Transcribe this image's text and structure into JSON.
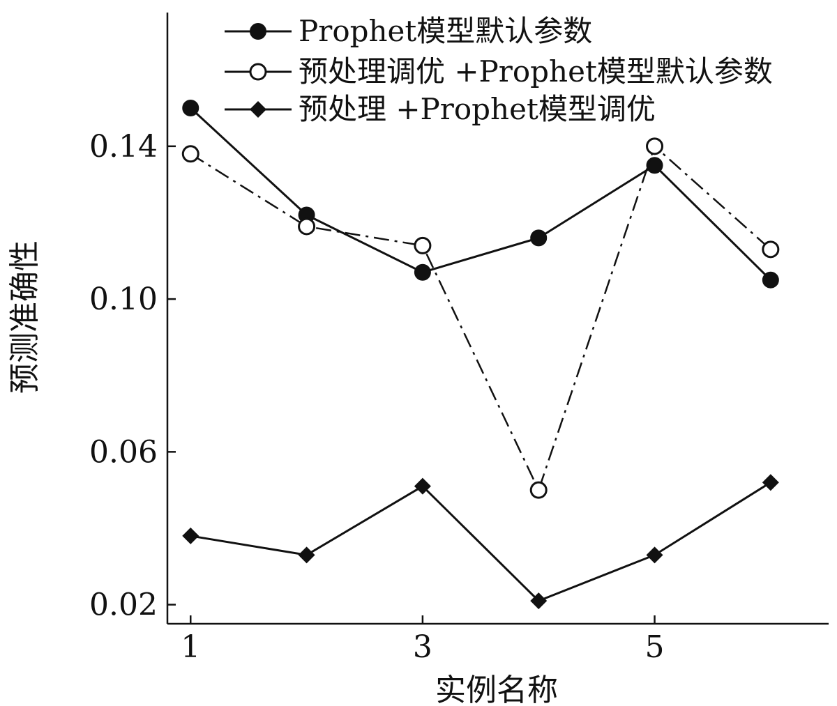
{
  "chart_data": {
    "type": "line",
    "title": "",
    "xlabel": "实例名称",
    "ylabel": "预测准确性",
    "x": [
      1,
      2,
      3,
      4,
      5,
      6
    ],
    "xlim": [
      0.8,
      6.5
    ],
    "ylim": [
      0.015,
      0.175
    ],
    "x_ticks": [
      1,
      3,
      5
    ],
    "x_tick_labels": [
      "1",
      "3",
      "5"
    ],
    "y_ticks": [
      0.02,
      0.06,
      0.1,
      0.14
    ],
    "y_tick_labels": [
      "0.02",
      "0.06",
      "0.10",
      "0.14"
    ],
    "grid": false,
    "legend_position": "top",
    "series": [
      {
        "name": "Prophet模型默认参数",
        "marker": "filled-circle",
        "line_style": "solid",
        "values": [
          0.15,
          0.122,
          0.107,
          0.116,
          0.135,
          0.105
        ]
      },
      {
        "name": "预处理调优 +Prophet模型默认参数",
        "marker": "open-circle",
        "line_style": "dash-dot",
        "values": [
          0.138,
          0.119,
          0.114,
          0.05,
          0.14,
          0.113
        ]
      },
      {
        "name": "预处理 +Prophet模型调优",
        "marker": "filled-diamond",
        "line_style": "solid",
        "values": [
          0.038,
          0.033,
          0.051,
          0.021,
          0.033,
          0.052
        ]
      }
    ]
  }
}
